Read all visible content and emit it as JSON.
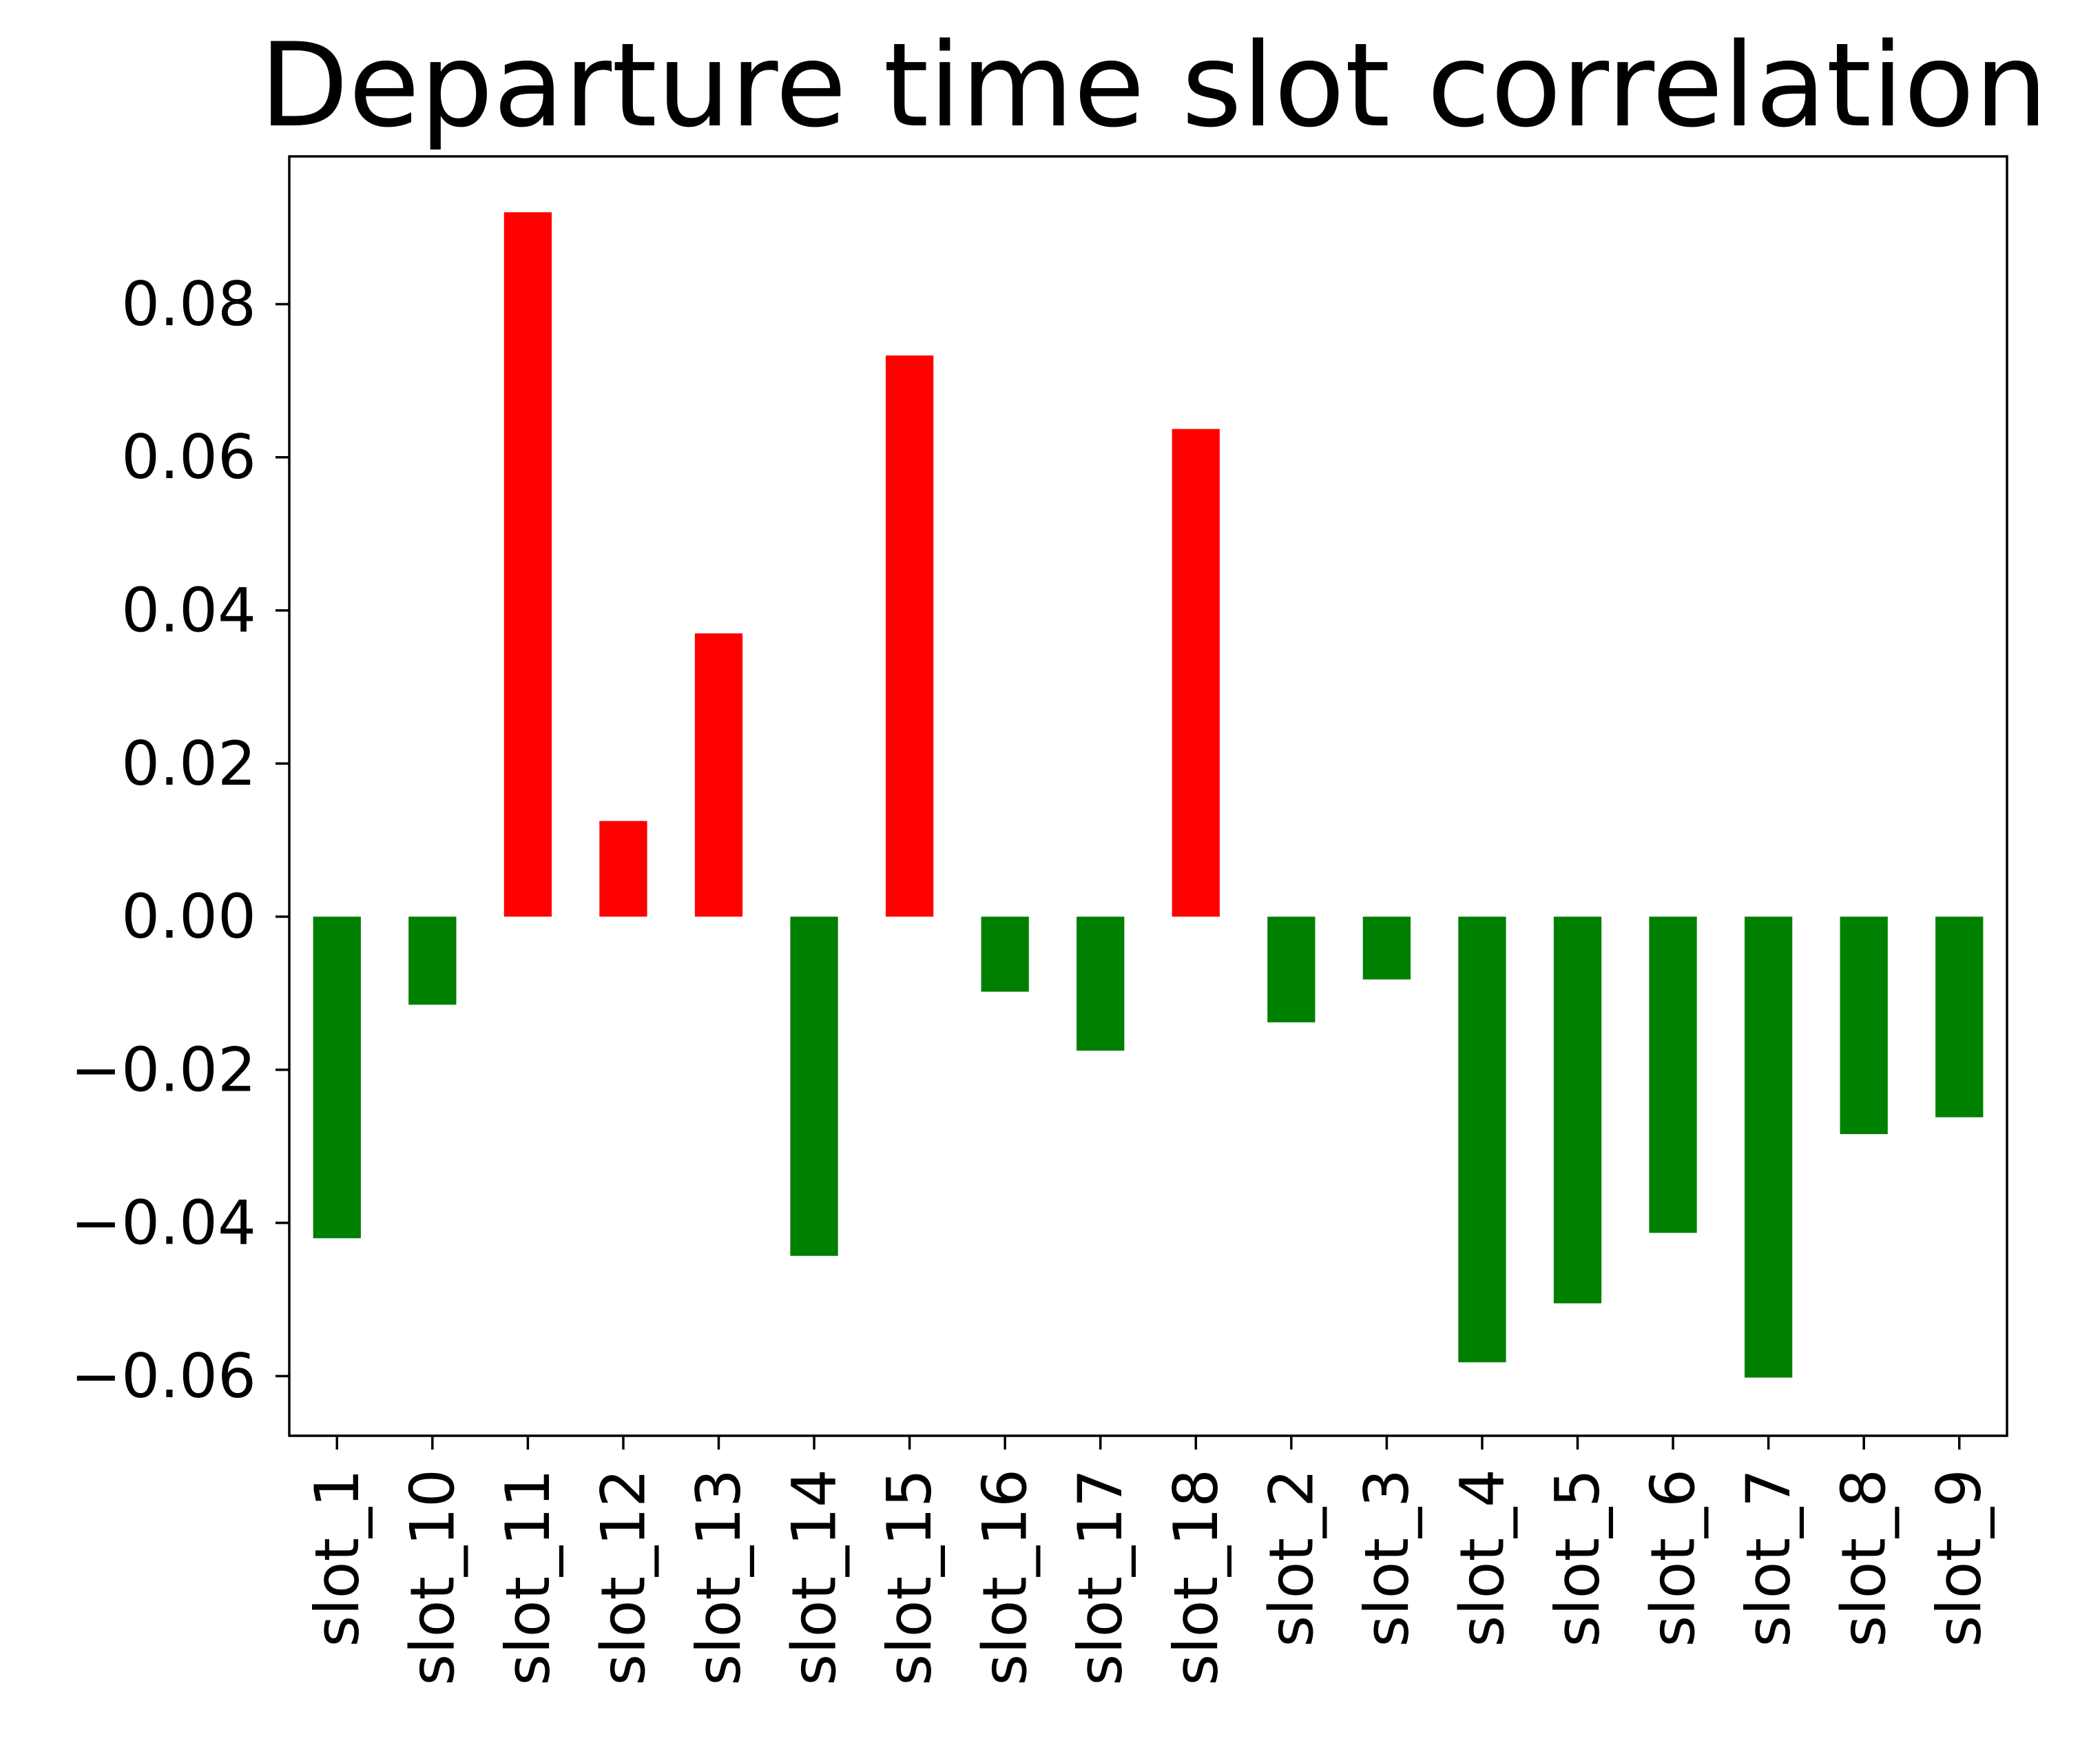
{
  "chart_data": {
    "type": "bar",
    "title": "Departure time slot correlation",
    "xlabel": "",
    "ylabel": "",
    "categories": [
      "slot_1",
      "slot_10",
      "slot_11",
      "slot_12",
      "slot_13",
      "slot_14",
      "slot_15",
      "slot_16",
      "slot_17",
      "slot_18",
      "slot_2",
      "slot_3",
      "slot_4",
      "slot_5",
      "slot_6",
      "slot_7",
      "slot_8",
      "slot_9"
    ],
    "values": [
      -0.042,
      -0.0115,
      0.092,
      0.0125,
      0.037,
      -0.0443,
      0.0733,
      -0.0098,
      -0.0175,
      0.0637,
      -0.0138,
      -0.0082,
      -0.0582,
      -0.0505,
      -0.0413,
      -0.0602,
      -0.0284,
      -0.0262
    ],
    "ylim": [
      -0.0678,
      0.0993
    ],
    "yticks": [
      -0.06,
      -0.04,
      -0.02,
      0.0,
      0.02,
      0.04,
      0.06,
      0.08
    ],
    "ytick_labels": [
      "−0.06",
      "−0.04",
      "−0.02",
      "0.00",
      "0.02",
      "0.04",
      "0.06",
      "0.08"
    ],
    "colors": {
      "positive": "#ff0000",
      "negative": "#008000"
    },
    "grid": false,
    "legend": "none"
  }
}
